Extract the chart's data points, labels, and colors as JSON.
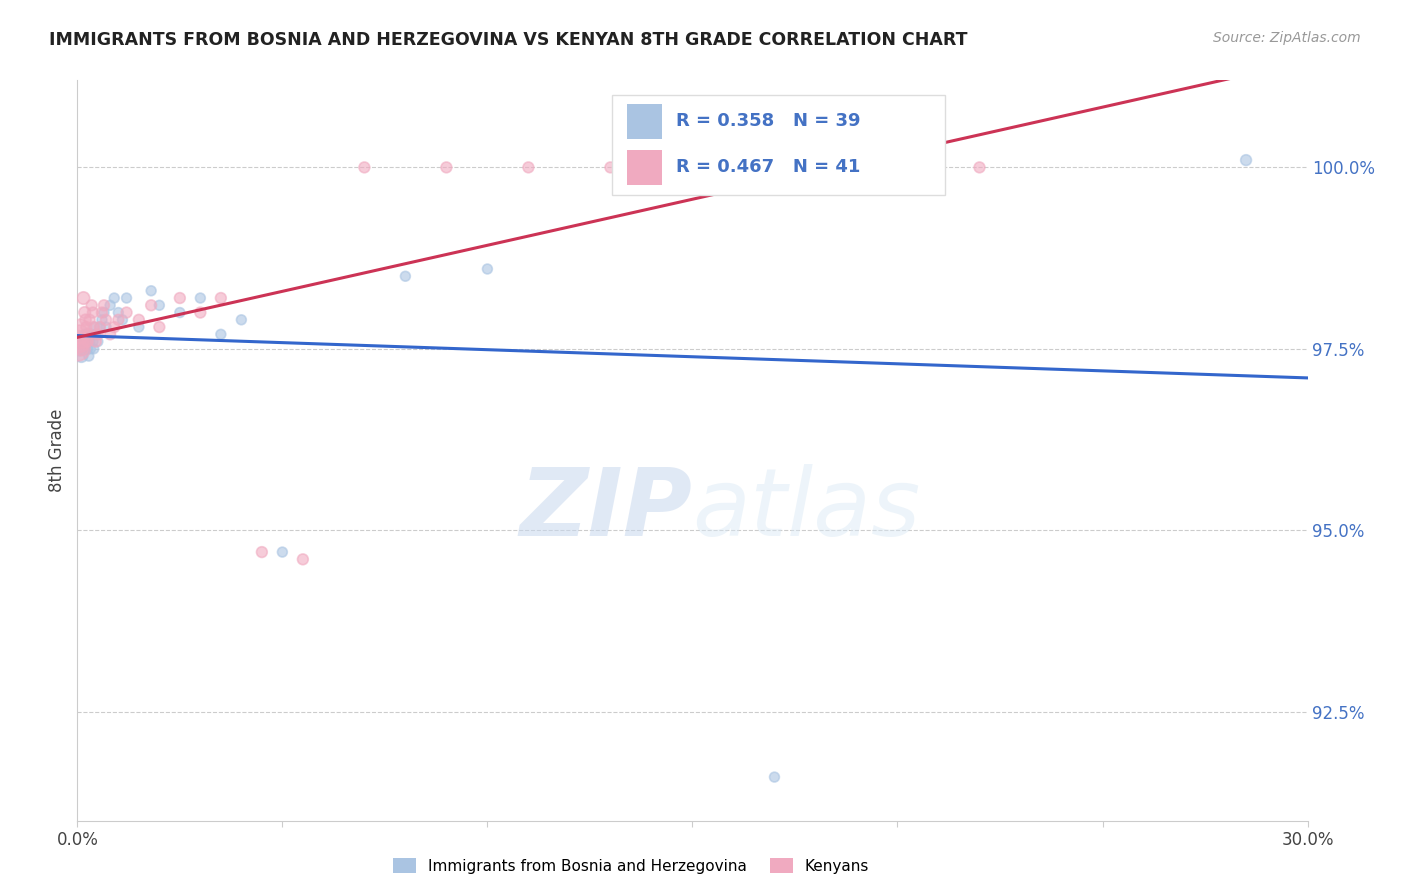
{
  "title": "IMMIGRANTS FROM BOSNIA AND HERZEGOVINA VS KENYAN 8TH GRADE CORRELATION CHART",
  "source": "Source: ZipAtlas.com",
  "ylabel": "8th Grade",
  "ytick_values": [
    92.5,
    95.0,
    97.5,
    100.0
  ],
  "xmin": 0.0,
  "xmax": 30.0,
  "ymin": 91.0,
  "ymax": 101.2,
  "blue_R": 0.358,
  "blue_N": 39,
  "pink_R": 0.467,
  "pink_N": 41,
  "blue_color": "#aac4e2",
  "pink_color": "#f0aac0",
  "blue_line_color": "#3366cc",
  "pink_line_color": "#cc3355",
  "watermark_zip": "ZIP",
  "watermark_atlas": "atlas",
  "legend_blue_label": "Immigrants from Bosnia and Herzegovina",
  "legend_pink_label": "Kenyans",
  "blue_scatter_x": [
    0.05,
    0.08,
    0.1,
    0.12,
    0.15,
    0.18,
    0.2,
    0.22,
    0.25,
    0.28,
    0.3,
    0.32,
    0.35,
    0.38,
    0.4,
    0.42,
    0.45,
    0.5,
    0.55,
    0.6,
    0.65,
    0.7,
    0.8,
    0.9,
    1.0,
    1.1,
    1.2,
    1.5,
    1.8,
    2.0,
    2.5,
    3.0,
    3.5,
    4.0,
    5.0,
    8.0,
    10.0,
    17.0,
    28.5
  ],
  "blue_scatter_y": [
    97.5,
    97.6,
    97.4,
    97.5,
    97.6,
    97.5,
    97.7,
    97.6,
    97.5,
    97.4,
    97.6,
    97.5,
    97.7,
    97.6,
    97.5,
    97.8,
    97.7,
    97.6,
    97.8,
    97.9,
    98.0,
    97.8,
    98.1,
    98.2,
    98.0,
    97.9,
    98.2,
    97.8,
    98.3,
    98.1,
    98.0,
    98.2,
    97.7,
    97.9,
    94.7,
    98.5,
    98.6,
    91.6,
    100.1
  ],
  "blue_scatter_sizes": [
    100,
    90,
    80,
    70,
    65,
    60,
    55,
    55,
    50,
    50,
    50,
    50,
    50,
    50,
    50,
    50,
    50,
    50,
    50,
    50,
    50,
    50,
    50,
    50,
    50,
    50,
    50,
    50,
    50,
    50,
    50,
    50,
    50,
    50,
    50,
    50,
    50,
    50,
    60
  ],
  "pink_scatter_x": [
    0.02,
    0.04,
    0.06,
    0.08,
    0.1,
    0.12,
    0.15,
    0.18,
    0.2,
    0.22,
    0.25,
    0.28,
    0.3,
    0.35,
    0.38,
    0.4,
    0.45,
    0.5,
    0.55,
    0.6,
    0.65,
    0.7,
    0.8,
    0.9,
    1.0,
    1.2,
    1.5,
    1.8,
    2.0,
    2.5,
    3.0,
    3.5,
    4.5,
    5.5,
    7.0,
    9.0,
    11.0,
    13.0,
    16.0,
    19.0,
    22.0
  ],
  "pink_scatter_y": [
    97.5,
    97.6,
    97.7,
    97.8,
    97.5,
    97.6,
    98.2,
    98.0,
    97.9,
    97.8,
    97.6,
    97.7,
    97.9,
    98.1,
    98.0,
    97.8,
    97.6,
    97.7,
    97.8,
    98.0,
    98.1,
    97.9,
    97.7,
    97.8,
    97.9,
    98.0,
    97.9,
    98.1,
    97.8,
    98.2,
    98.0,
    98.2,
    94.7,
    94.6,
    100.0,
    100.0,
    100.0,
    100.0,
    100.0,
    100.0,
    100.0
  ],
  "pink_scatter_sizes": [
    300,
    250,
    180,
    130,
    100,
    90,
    80,
    70,
    65,
    60,
    60,
    60,
    60,
    60,
    60,
    60,
    60,
    60,
    60,
    60,
    60,
    60,
    60,
    60,
    60,
    60,
    60,
    60,
    60,
    60,
    60,
    60,
    60,
    60,
    60,
    60,
    60,
    60,
    60,
    60,
    60
  ]
}
